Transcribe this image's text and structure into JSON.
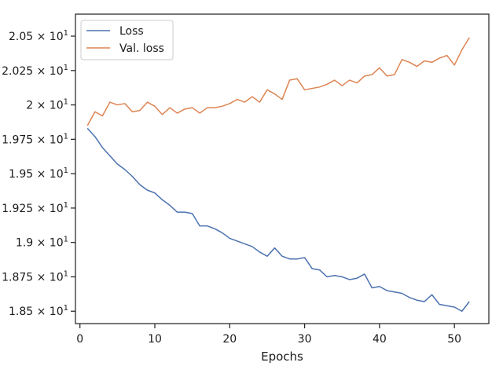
{
  "chart_data": {
    "type": "line",
    "xlabel": "Epochs",
    "ylabel": "",
    "xlim": [
      -0.6,
      54.6
    ],
    "ylim": [
      18.41,
      20.66
    ],
    "x_ticks": [
      0,
      10,
      20,
      30,
      40,
      50
    ],
    "y_ticks": [
      {
        "value": 18.5,
        "label_main": "1.85",
        "label_exp": "1"
      },
      {
        "value": 18.75,
        "label_main": "1.875",
        "label_exp": "1"
      },
      {
        "value": 19.0,
        "label_main": "1.9",
        "label_exp": "1"
      },
      {
        "value": 19.25,
        "label_main": "1.925",
        "label_exp": "1"
      },
      {
        "value": 19.5,
        "label_main": "1.95",
        "label_exp": "1"
      },
      {
        "value": 19.75,
        "label_main": "1.975",
        "label_exp": "1"
      },
      {
        "value": 20.0,
        "label_main": "2",
        "label_exp": "1"
      },
      {
        "value": 20.25,
        "label_main": "2.025",
        "label_exp": "1"
      },
      {
        "value": 20.5,
        "label_main": "2.05",
        "label_exp": "1"
      }
    ],
    "y_tick_base": "10",
    "y_tick_times": "×",
    "legend_position": "top-left",
    "grid": false,
    "x": [
      1,
      2,
      3,
      4,
      5,
      6,
      7,
      8,
      9,
      10,
      11,
      12,
      13,
      14,
      15,
      16,
      17,
      18,
      19,
      20,
      21,
      22,
      23,
      24,
      25,
      26,
      27,
      28,
      29,
      30,
      31,
      32,
      33,
      34,
      35,
      36,
      37,
      38,
      39,
      40,
      41,
      42,
      43,
      44,
      45,
      46,
      47,
      48,
      49,
      50,
      51,
      52
    ],
    "series": [
      {
        "name": "Loss",
        "color": "#4c72b0",
        "values": [
          19.83,
          19.77,
          19.69,
          19.63,
          19.57,
          19.53,
          19.48,
          19.42,
          19.38,
          19.36,
          19.31,
          19.27,
          19.22,
          19.22,
          19.21,
          19.12,
          19.12,
          19.1,
          19.07,
          19.03,
          19.01,
          18.99,
          18.97,
          18.93,
          18.9,
          18.96,
          18.9,
          18.88,
          18.88,
          18.89,
          18.81,
          18.8,
          18.75,
          18.76,
          18.75,
          18.73,
          18.74,
          18.77,
          18.67,
          18.68,
          18.65,
          18.64,
          18.63,
          18.6,
          18.58,
          18.57,
          18.62,
          18.55,
          18.54,
          18.53,
          18.5,
          18.57
        ]
      },
      {
        "name": "Val. loss",
        "color": "#dd8452",
        "values": [
          19.85,
          19.95,
          19.92,
          20.02,
          20.0,
          20.01,
          19.95,
          19.96,
          20.02,
          19.99,
          19.93,
          19.98,
          19.94,
          19.97,
          19.98,
          19.94,
          19.98,
          19.98,
          19.99,
          20.01,
          20.04,
          20.02,
          20.06,
          20.02,
          20.11,
          20.08,
          20.04,
          20.18,
          20.19,
          20.11,
          20.12,
          20.13,
          20.15,
          20.18,
          20.14,
          20.18,
          20.16,
          20.21,
          20.22,
          20.27,
          20.21,
          20.22,
          20.33,
          20.31,
          20.28,
          20.32,
          20.31,
          20.34,
          20.36,
          20.29,
          20.4,
          20.49
        ]
      }
    ]
  }
}
